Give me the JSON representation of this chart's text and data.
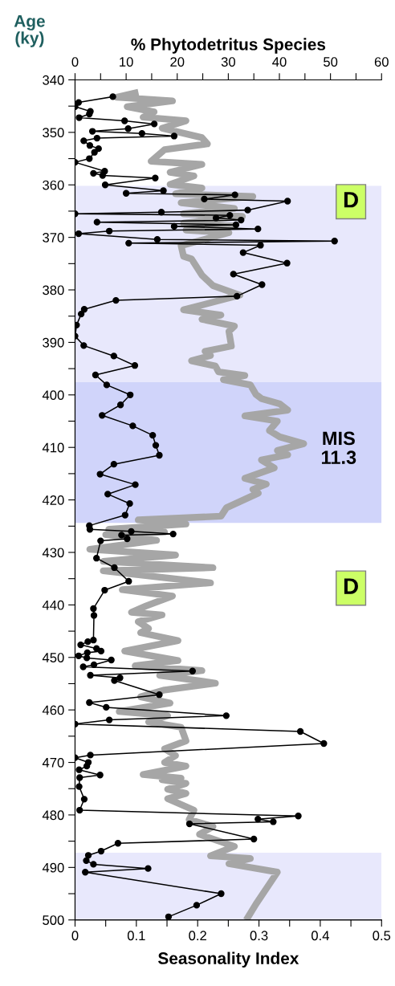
{
  "chart_data": {
    "type": "line",
    "xlabel": "Seasonality Index",
    "x2label": "% Phytodetritus Species",
    "ylabel": "Age\n(ky)",
    "xlim": [
      0,
      0.5
    ],
    "xticks": [
      0,
      {
        "value": 0.05,
        "label": null
      },
      0.1,
      {
        "value": 0.15,
        "label": null
      },
      0.2,
      {
        "value": 0.25,
        "label": null
      },
      0.3,
      {
        "value": 0.35,
        "label": null
      },
      0.4,
      {
        "value": 0.45,
        "label": null
      },
      0.5
    ],
    "x2lim": [
      0,
      60
    ],
    "x2ticks": [
      0,
      {
        "value": 5,
        "label": null
      },
      10,
      {
        "value": 15,
        "label": null
      },
      20,
      {
        "value": 25,
        "label": null
      },
      30,
      {
        "value": 35,
        "label": null
      },
      40,
      {
        "value": 45,
        "label": null
      },
      50,
      {
        "value": 55,
        "label": null
      },
      60
    ],
    "ylim": [
      500,
      340
    ],
    "yticks": [
      340,
      {
        "value": 345,
        "label": null
      },
      350,
      {
        "value": 355,
        "label": null
      },
      360,
      {
        "value": 365,
        "label": null
      },
      370,
      {
        "value": 375,
        "label": null
      },
      380,
      {
        "value": 385,
        "label": null
      },
      390,
      {
        "value": 395,
        "label": null
      },
      400,
      {
        "value": 405,
        "label": null
      },
      410,
      {
        "value": 415,
        "label": null
      },
      420,
      {
        "value": 425,
        "label": null
      },
      430,
      {
        "value": 435,
        "label": null
      },
      440,
      {
        "value": 445,
        "label": null
      },
      450,
      {
        "value": 455,
        "label": null
      },
      460,
      {
        "value": 465,
        "label": null
      },
      470,
      {
        "value": 475,
        "label": null
      },
      480,
      {
        "value": 485,
        "label": null
      },
      490,
      {
        "value": 495,
        "label": null
      },
      500
    ],
    "grid": false,
    "bands": [
      {
        "axis": "y",
        "from": 360.2,
        "to": 397.6,
        "color": "#e8e8fc"
      },
      {
        "axis": "y",
        "from": 397.6,
        "to": 424.4,
        "color": "#d0d4fa"
      },
      {
        "axis": "y",
        "from": 487.2,
        "to": 500,
        "color": "#e8e8fc"
      }
    ],
    "annotations": [
      "D",
      "MIS\n11.3",
      "D"
    ],
    "series": [
      {
        "color": "#a6a6a6",
        "marker": "none",
        "line_style": "solid",
        "x": [
          0.098,
          0.068,
          0.159,
          0.085,
          0.129,
          0.111,
          0.181,
          0.142,
          0.207,
          0.216,
          0.146,
          0.124,
          0.207,
          0.155,
          0.194,
          0.155,
          0.207,
          0.164,
          0.29,
          0.173,
          0.26,
          0.177,
          0.273,
          0.177,
          0.26,
          0.181,
          0.251,
          0.173,
          0.177,
          0.19,
          0.207,
          0.225,
          0.269,
          0.177,
          0.238,
          0.207,
          0.26,
          0.251,
          0.255,
          0.212,
          0.221,
          0.19,
          0.229,
          0.234,
          0.277,
          0.242,
          0.286,
          0.295,
          0.304,
          0.334,
          0.347,
          0.277,
          0.33,
          0.317,
          0.334,
          0.373,
          0.33,
          0.347,
          0.304,
          0.325,
          0.277,
          0.312,
          0.29,
          0.299,
          0.247,
          0.238,
          0.103,
          0.181,
          0.055,
          0.146,
          0.05,
          0.133,
          0.024,
          0.164,
          0.046,
          0.225,
          0.046,
          0.221,
          0.077,
          0.159,
          0.116,
          0.092,
          0.142,
          0.103,
          0.12,
          0.107,
          0.168,
          0.081,
          0.168,
          0.098,
          0.207,
          0.138,
          0.229,
          0.146,
          0.107,
          0.155,
          0.072,
          0.151,
          0.12,
          0.173,
          0.181,
          0.146,
          0.164,
          0.146,
          0.181,
          0.111,
          0.173,
          0.142,
          0.181,
          0.151,
          0.181,
          0.151,
          0.194,
          0.186,
          0.225,
          0.203,
          0.26,
          0.221,
          0.286,
          0.251,
          0.33,
          0.295,
          0.282
        ],
        "values": [
          342.5,
          343.3,
          344.0,
          345.1,
          346.1,
          347.1,
          347.8,
          349.2,
          351.0,
          352.2,
          353.3,
          355.5,
          356.1,
          357.6,
          358.3,
          359.9,
          360.6,
          361.7,
          362.2,
          363.4,
          364.5,
          365.5,
          366.0,
          367.3,
          367.8,
          368.6,
          369.1,
          371.6,
          373.6,
          374.1,
          377.2,
          379.2,
          381.0,
          383.8,
          384.8,
          385.6,
          386.9,
          387.9,
          390.7,
          391.7,
          392.5,
          393.5,
          394.5,
          395.6,
          396.3,
          397.1,
          398.1,
          399.9,
          400.7,
          401.7,
          402.9,
          404.0,
          405.0,
          406.8,
          408.0,
          409.3,
          410.6,
          411.4,
          412.4,
          413.9,
          415.9,
          417.0,
          418.0,
          418.7,
          421.5,
          423.1,
          423.8,
          424.6,
          425.6,
          426.1,
          426.6,
          427.7,
          429.4,
          430.5,
          431.7,
          432.9,
          433.5,
          435.8,
          437.1,
          438.3,
          440.2,
          441.4,
          441.9,
          443.2,
          444.5,
          445.3,
          446.8,
          448.8,
          450.6,
          451.6,
          452.5,
          453.4,
          454.9,
          456.2,
          457.5,
          458.7,
          460.3,
          461.1,
          462.3,
          463.3,
          465.9,
          467.4,
          468.7,
          470.0,
          470.7,
          472.3,
          473.0,
          473.3,
          474.0,
          475.1,
          475.9,
          476.9,
          479.1,
          480.9,
          482.2,
          483.7,
          486.0,
          487.8,
          488.3,
          489.3,
          490.9,
          497.0,
          499.5
        ]
      },
      {
        "axis": "x2",
        "color": "#000000",
        "marker": "circle",
        "line_style": "solid",
        "x": [
          7.4,
          0.7,
          0,
          3.0,
          2.8,
          0.8,
          9.7,
          15.5,
          10.4,
          3.4,
          13.1,
          19.4,
          4.3,
          1.7,
          2.9,
          4.6,
          3.8,
          2.8,
          0,
          5.8,
          3.6,
          5.4,
          15.7,
          5.9,
          17.3,
          10.0,
          31.3,
          25.3,
          41.6,
          33.8,
          16.9,
          0,
          30.3,
          27.6,
          32.5,
          4.3,
          31.5,
          19.4,
          35.8,
          6.7,
          0.7,
          16.1,
          50.8,
          10.5,
          36.3,
          32.9,
          41.5,
          31.0,
          36.6,
          31.7,
          8.0,
          1.8,
          1.2,
          0.3,
          0,
          1.7,
          7.6,
          11.7,
          4.0,
          6.2,
          10.8,
          8.9,
          5.3,
          11.3,
          15.2,
          15.8,
          16.5,
          7.6,
          4.9,
          11.8,
          6.4,
          10.7,
          9.8,
          2.8,
          2.9,
          11.0,
          19.2,
          9.1,
          10.2,
          5.0,
          4.2,
          7.7,
          10.5,
          5.8,
          3.6,
          3.7,
          3.6,
          2.5,
          1.1,
          4.2,
          5.1,
          2.4,
          0.7,
          2.3,
          7.1,
          3.7,
          1.6,
          23.0,
          3.0,
          8.8,
          7.7,
          16.5,
          2.8,
          6.1,
          29.6,
          6.7,
          0,
          44.1,
          48.7,
          3.0,
          0,
          2.6,
          2.3,
          0.8,
          4.9,
          0.9,
          0.8,
          1.8,
          0.9,
          43.7,
          35.8,
          38.8,
          22.4,
          35.0,
          8.4,
          5.1,
          2.6,
          2.2,
          3.6,
          14.3,
          2.0,
          28.6,
          23.8,
          18.3
        ],
        "values": [
          343.2,
          344.3,
          345.1,
          346.0,
          346.5,
          347.2,
          347.8,
          348.4,
          349.3,
          349.8,
          350.2,
          350.7,
          351.1,
          351.6,
          352.5,
          353.1,
          353.8,
          355.0,
          355.7,
          357.4,
          357.8,
          358.2,
          358.7,
          360.0,
          361.1,
          361.6,
          361.9,
          362.7,
          363.1,
          364.8,
          365.2,
          365.5,
          365.8,
          366.3,
          366.7,
          367.1,
          367.6,
          367.9,
          368.4,
          368.8,
          369.3,
          370.4,
          370.7,
          371.1,
          371.5,
          372.9,
          374.9,
          377.0,
          379.0,
          381.2,
          382.0,
          383.7,
          384.6,
          386.7,
          388.8,
          390.6,
          392.6,
          394.4,
          396.2,
          398.1,
          400.0,
          401.9,
          403.9,
          405.9,
          407.7,
          409.6,
          411.5,
          413.2,
          415.1,
          417.1,
          418.9,
          420.7,
          422.9,
          424.9,
          425.6,
          426.0,
          426.5,
          426.7,
          427.4,
          427.8,
          431.1,
          432.9,
          435.5,
          437.2,
          440.7,
          442.0,
          446.7,
          447.0,
          447.6,
          448.3,
          448.8,
          449.1,
          449.7,
          450.1,
          450.5,
          451.4,
          451.8,
          452.6,
          453.4,
          453.9,
          454.4,
          457.1,
          458.6,
          459.5,
          461.1,
          461.9,
          462.7,
          464.1,
          466.4,
          468.6,
          469.1,
          470.0,
          470.7,
          471.4,
          472.4,
          472.9,
          474.6,
          477.0,
          479.1,
          480.2,
          480.8,
          481.3,
          481.7,
          484.6,
          485.4,
          486.9,
          487.7,
          488.7,
          489.4,
          490.2,
          490.9,
          495.0,
          497.2,
          499.4
        ]
      }
    ]
  }
}
